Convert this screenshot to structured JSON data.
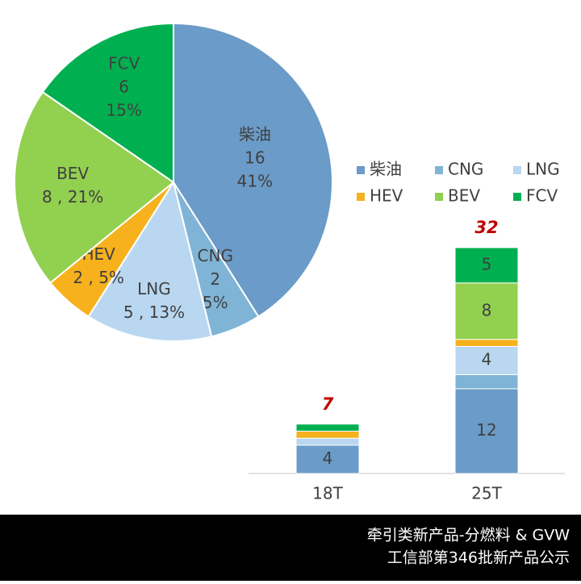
{
  "chart_data": [
    {
      "type": "pie",
      "categories": [
        "柴油",
        "CNG",
        "LNG",
        "HEV",
        "BEV",
        "FCV"
      ],
      "values": [
        16,
        2,
        5,
        2,
        8,
        6
      ],
      "value_labels": [
        [
          "16",
          "41%"
        ],
        [
          "2",
          "5%"
        ],
        [
          "5 , 13%"
        ],
        [
          "2 , 5%"
        ],
        [
          "8 , 21%"
        ],
        [
          "6",
          "15%"
        ]
      ],
      "colors": [
        "#6b9bc8",
        "#7fb4d6",
        "#b9d7f0",
        "#f6b11c",
        "#92d050",
        "#00b050"
      ]
    },
    {
      "type": "stacked_bar",
      "categories": [
        "18T",
        "25T"
      ],
      "series": [
        {
          "name": "柴油",
          "color": "#6b9bc8",
          "values": [
            4,
            12
          ],
          "value_labels": [
            "4",
            "12"
          ]
        },
        {
          "name": "CNG",
          "color": "#7fb4d6",
          "values": [
            0,
            2
          ],
          "value_labels": [
            null,
            null
          ]
        },
        {
          "name": "LNG",
          "color": "#b9d7f0",
          "values": [
            1,
            4
          ],
          "value_labels": [
            null,
            "4"
          ]
        },
        {
          "name": "HEV",
          "color": "#f6b11c",
          "values": [
            1,
            1
          ],
          "value_labels": [
            null,
            null
          ]
        },
        {
          "name": "BEV",
          "color": "#92d050",
          "values": [
            0,
            8
          ],
          "value_labels": [
            null,
            "8"
          ]
        },
        {
          "name": "FCV",
          "color": "#00b050",
          "values": [
            1,
            5
          ],
          "value_labels": [
            null,
            "5"
          ]
        }
      ],
      "totals": [
        7,
        32
      ],
      "ylim": [
        0,
        32
      ]
    }
  ],
  "footer": [
    "牵引类新产品-分燃料 & GVW",
    "工信部第346批新产品公示"
  ]
}
